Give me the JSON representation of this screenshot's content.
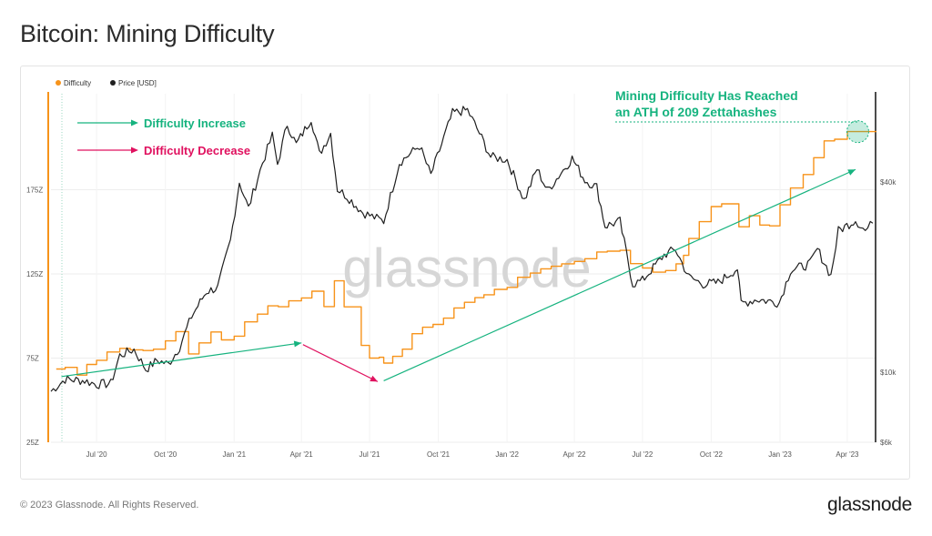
{
  "page": {
    "title": "Bitcoin: Mining Difficulty",
    "copyright": "© 2023 Glassnode. All Rights Reserved.",
    "brand": "glassnode",
    "watermark": "glassnode"
  },
  "colors": {
    "difficulty": "#f7931a",
    "price": "#1f1f1f",
    "increase": "#16b37f",
    "decrease": "#e0115f",
    "grid": "#eeeeee",
    "axis_text": "#555555",
    "watermark": "#d4d4d4"
  },
  "annotations": {
    "increase_label": "Difficulty Increase",
    "decrease_label": "Difficulty Decrease",
    "ath_line1": "Mining Difficulty Has Reached",
    "ath_line2": "an ATH of 209 Zettahashes"
  },
  "chart_data": {
    "type": "line",
    "legend": [
      {
        "name": "Difficulty",
        "color": "#f7931a"
      },
      {
        "name": "Price [USD]",
        "color": "#1f1f1f"
      }
    ],
    "legend_position": "top-left",
    "grid": true,
    "x_range": [
      "2020-05-01",
      "2023-05-10"
    ],
    "x_ticks": [
      "Jul '20",
      "Oct '20",
      "Jan '21",
      "Apr '21",
      "Jul '21",
      "Oct '21",
      "Jan '22",
      "Apr '22",
      "Jul '22",
      "Oct '22",
      "Jan '23",
      "Apr '23"
    ],
    "x_tick_dates": [
      "2020-07-01",
      "2020-10-01",
      "2021-01-01",
      "2021-04-01",
      "2021-07-01",
      "2021-10-01",
      "2022-01-01",
      "2022-04-01",
      "2022-07-01",
      "2022-10-01",
      "2023-01-01",
      "2023-04-01"
    ],
    "y_left": {
      "label": "",
      "scale": "linear",
      "ylim": [
        25,
        232
      ],
      "ticks": [
        25,
        75,
        125,
        175
      ],
      "tick_labels": [
        "25Z",
        "75Z",
        "125Z",
        "175Z"
      ]
    },
    "y_right": {
      "label": "",
      "scale": "log",
      "ylim": [
        6000,
        76000
      ],
      "ticks": [
        6000,
        10000,
        40000
      ],
      "tick_labels": [
        "$6k",
        "$10k",
        "$40k"
      ]
    },
    "series": [
      {
        "name": "Difficulty",
        "axis": "left",
        "step": true,
        "points": [
          [
            "2020-05-08",
            68.5
          ],
          [
            "2020-05-20",
            69.5
          ],
          [
            "2020-06-05",
            64.9
          ],
          [
            "2020-06-18",
            71.2
          ],
          [
            "2020-07-01",
            73.7
          ],
          [
            "2020-07-15",
            78.6
          ],
          [
            "2020-08-01",
            80.8
          ],
          [
            "2020-08-15",
            79.9
          ],
          [
            "2020-09-01",
            79.5
          ],
          [
            "2020-09-15",
            80.3
          ],
          [
            "2020-10-01",
            85.2
          ],
          [
            "2020-10-15",
            90.7
          ],
          [
            "2020-11-01",
            77.5
          ],
          [
            "2020-11-15",
            84.0
          ],
          [
            "2020-12-01",
            90.5
          ],
          [
            "2020-12-15",
            85.8
          ],
          [
            "2021-01-01",
            88.0
          ],
          [
            "2021-01-15",
            96.5
          ],
          [
            "2021-02-01",
            101.1
          ],
          [
            "2021-02-15",
            106.0
          ],
          [
            "2021-03-01",
            105.5
          ],
          [
            "2021-03-15",
            109.0
          ],
          [
            "2021-04-01",
            110.7
          ],
          [
            "2021-04-15",
            114.7
          ],
          [
            "2021-05-01",
            105.6
          ],
          [
            "2021-05-15",
            120.9
          ],
          [
            "2021-05-28",
            105.4
          ],
          [
            "2021-06-20",
            82.5
          ],
          [
            "2021-07-01",
            75.0
          ],
          [
            "2021-07-14",
            75.5
          ],
          [
            "2021-07-20",
            72.0
          ],
          [
            "2021-08-01",
            76.0
          ],
          [
            "2021-08-14",
            80.3
          ],
          [
            "2021-08-27",
            89.5
          ],
          [
            "2021-09-10",
            93.3
          ],
          [
            "2021-09-24",
            95.0
          ],
          [
            "2021-10-08",
            98.7
          ],
          [
            "2021-10-22",
            104.8
          ],
          [
            "2021-11-05",
            108.1
          ],
          [
            "2021-11-19",
            110.9
          ],
          [
            "2021-12-01",
            112.6
          ],
          [
            "2021-12-15",
            115.8
          ],
          [
            "2022-01-01",
            117.0
          ],
          [
            "2022-01-15",
            123.0
          ],
          [
            "2022-02-01",
            125.5
          ],
          [
            "2022-02-15",
            128.0
          ],
          [
            "2022-03-01",
            129.5
          ],
          [
            "2022-03-15",
            131.0
          ],
          [
            "2022-04-01",
            132.4
          ],
          [
            "2022-04-15",
            134.0
          ],
          [
            "2022-05-01",
            138.0
          ],
          [
            "2022-05-15",
            138.5
          ],
          [
            "2022-06-01",
            139.0
          ],
          [
            "2022-06-15",
            131.1
          ],
          [
            "2022-07-01",
            128.5
          ],
          [
            "2022-07-15",
            126.0
          ],
          [
            "2022-08-01",
            127.0
          ],
          [
            "2022-08-15",
            131.0
          ],
          [
            "2022-08-25",
            136.0
          ],
          [
            "2022-09-01",
            146.0
          ],
          [
            "2022-09-15",
            156.0
          ],
          [
            "2022-10-01",
            165.0
          ],
          [
            "2022-10-15",
            166.6
          ],
          [
            "2022-11-07",
            153.0
          ],
          [
            "2022-11-21",
            159.5
          ],
          [
            "2022-12-05",
            154.0
          ],
          [
            "2022-12-18",
            153.5
          ],
          [
            "2023-01-01",
            166.0
          ],
          [
            "2023-01-15",
            176.0
          ],
          [
            "2023-02-01",
            184.0
          ],
          [
            "2023-02-15",
            194.0
          ],
          [
            "2023-03-01",
            204.0
          ],
          [
            "2023-03-15",
            205.0
          ],
          [
            "2023-04-01",
            209.5
          ]
        ]
      },
      {
        "name": "Price [USD]",
        "axis": "right",
        "step": false,
        "points": [
          [
            "2020-05-01",
            8700
          ],
          [
            "2020-05-20",
            9500
          ],
          [
            "2020-06-15",
            9400
          ],
          [
            "2020-07-01",
            9150
          ],
          [
            "2020-07-20",
            9200
          ],
          [
            "2020-08-01",
            11300
          ],
          [
            "2020-08-20",
            11800
          ],
          [
            "2020-09-05",
            10200
          ],
          [
            "2020-09-20",
            10900
          ],
          [
            "2020-10-05",
            10600
          ],
          [
            "2020-10-20",
            12000
          ],
          [
            "2020-11-05",
            15000
          ],
          [
            "2020-11-25",
            18000
          ],
          [
            "2020-12-10",
            18500
          ],
          [
            "2020-12-27",
            26000
          ],
          [
            "2021-01-08",
            40000
          ],
          [
            "2021-01-20",
            33000
          ],
          [
            "2021-02-08",
            46000
          ],
          [
            "2021-02-21",
            56000
          ],
          [
            "2021-02-28",
            45500
          ],
          [
            "2021-03-13",
            61000
          ],
          [
            "2021-03-25",
            52500
          ],
          [
            "2021-04-14",
            63500
          ],
          [
            "2021-04-25",
            49000
          ],
          [
            "2021-05-10",
            57000
          ],
          [
            "2021-05-19",
            38000
          ],
          [
            "2021-06-01",
            36000
          ],
          [
            "2021-06-22",
            32000
          ],
          [
            "2021-07-20",
            30000
          ],
          [
            "2021-08-10",
            46000
          ],
          [
            "2021-09-06",
            52000
          ],
          [
            "2021-09-21",
            42000
          ],
          [
            "2021-10-20",
            66000
          ],
          [
            "2021-11-09",
            67500
          ],
          [
            "2021-11-25",
            57000
          ],
          [
            "2021-12-10",
            48000
          ],
          [
            "2022-01-01",
            47000
          ],
          [
            "2022-01-24",
            35000
          ],
          [
            "2022-02-10",
            44000
          ],
          [
            "2022-02-24",
            37500
          ],
          [
            "2022-03-29",
            47500
          ],
          [
            "2022-04-15",
            40500
          ],
          [
            "2022-05-01",
            38500
          ],
          [
            "2022-05-12",
            29000
          ],
          [
            "2022-06-01",
            30000
          ],
          [
            "2022-06-18",
            19000
          ],
          [
            "2022-07-01",
            19500
          ],
          [
            "2022-07-30",
            23500
          ],
          [
            "2022-08-14",
            24500
          ],
          [
            "2022-09-01",
            20000
          ],
          [
            "2022-09-20",
            19000
          ],
          [
            "2022-10-10",
            19200
          ],
          [
            "2022-11-05",
            21300
          ],
          [
            "2022-11-10",
            16500
          ],
          [
            "2022-12-01",
            17000
          ],
          [
            "2022-12-31",
            16600
          ],
          [
            "2023-01-15",
            21000
          ],
          [
            "2023-02-10",
            22000
          ],
          [
            "2023-02-20",
            24500
          ],
          [
            "2023-03-10",
            20200
          ],
          [
            "2023-03-20",
            28000
          ],
          [
            "2023-04-12",
            30300
          ],
          [
            "2023-04-25",
            28000
          ],
          [
            "2023-05-05",
            29600
          ]
        ]
      }
    ],
    "arrows": [
      {
        "label": "Difficulty Increase",
        "from": [
          "2020-05-15",
          64.0
        ],
        "to": [
          "2021-04-01",
          84.0
        ]
      },
      {
        "label": "Difficulty Decrease",
        "from": [
          "2021-04-03",
          83.0
        ],
        "to": [
          "2021-07-12",
          61.0
        ]
      },
      {
        "label": "Difficulty Increase",
        "from": [
          "2021-07-20",
          61.5
        ],
        "to": [
          "2023-04-12",
          187.0
        ]
      }
    ],
    "ath_marker": {
      "date": "2023-04-15",
      "value": 209.5
    }
  }
}
